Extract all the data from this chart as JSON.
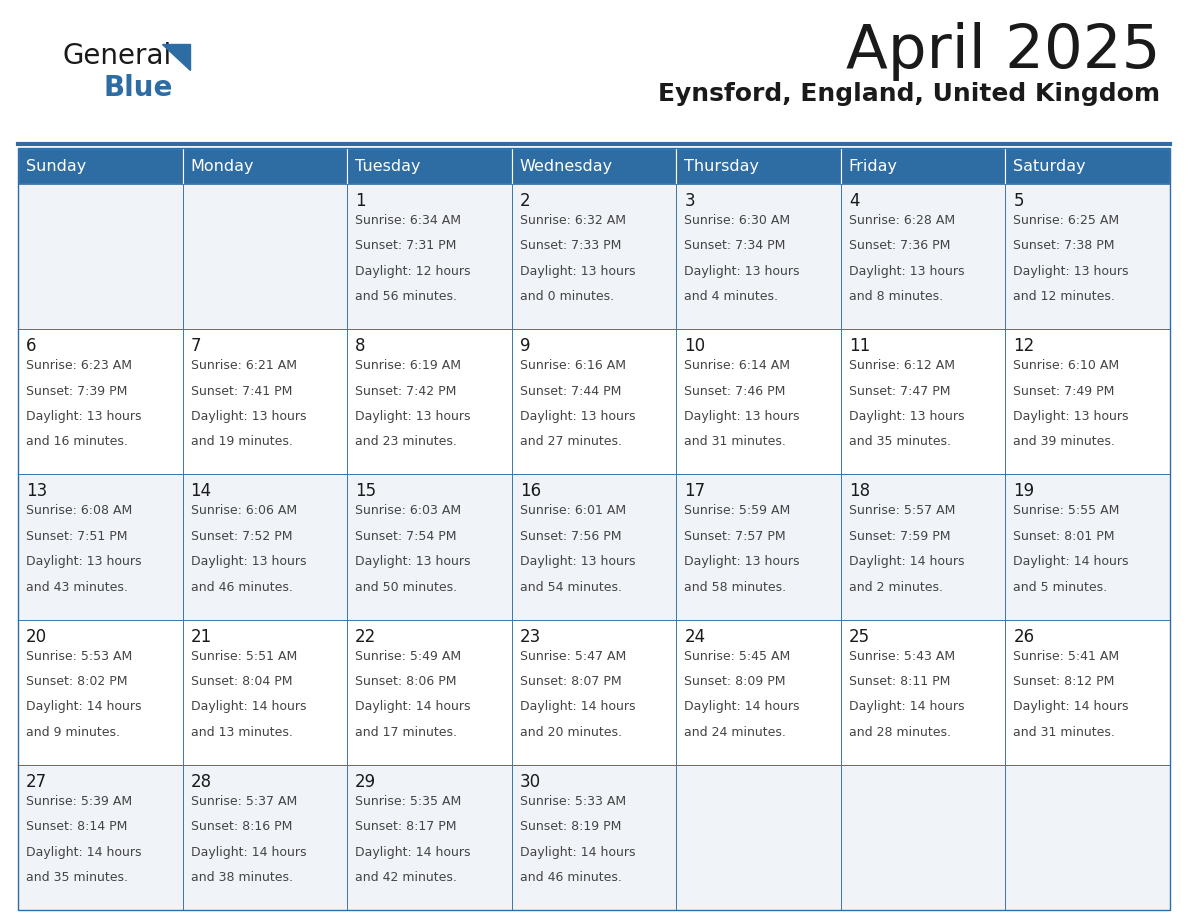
{
  "title": "April 2025",
  "subtitle": "Eynsford, England, United Kingdom",
  "header_bg_color": "#2E6DA4",
  "header_text_color": "#FFFFFF",
  "cell_bg_color_light": "#F0F4F8",
  "cell_bg_color_white": "#FFFFFF",
  "cell_text_color": "#333333",
  "border_color": "#2E6DA4",
  "days_of_week": [
    "Sunday",
    "Monday",
    "Tuesday",
    "Wednesday",
    "Thursday",
    "Friday",
    "Saturday"
  ],
  "weeks": [
    [
      {
        "day": "",
        "sunrise": "",
        "sunset": "",
        "daylight": ""
      },
      {
        "day": "",
        "sunrise": "",
        "sunset": "",
        "daylight": ""
      },
      {
        "day": "1",
        "sunrise": "6:34 AM",
        "sunset": "7:31 PM",
        "daylight": "12 hours and 56 minutes."
      },
      {
        "day": "2",
        "sunrise": "6:32 AM",
        "sunset": "7:33 PM",
        "daylight": "13 hours and 0 minutes."
      },
      {
        "day": "3",
        "sunrise": "6:30 AM",
        "sunset": "7:34 PM",
        "daylight": "13 hours and 4 minutes."
      },
      {
        "day": "4",
        "sunrise": "6:28 AM",
        "sunset": "7:36 PM",
        "daylight": "13 hours and 8 minutes."
      },
      {
        "day": "5",
        "sunrise": "6:25 AM",
        "sunset": "7:38 PM",
        "daylight": "13 hours and 12 minutes."
      }
    ],
    [
      {
        "day": "6",
        "sunrise": "6:23 AM",
        "sunset": "7:39 PM",
        "daylight": "13 hours and 16 minutes."
      },
      {
        "day": "7",
        "sunrise": "6:21 AM",
        "sunset": "7:41 PM",
        "daylight": "13 hours and 19 minutes."
      },
      {
        "day": "8",
        "sunrise": "6:19 AM",
        "sunset": "7:42 PM",
        "daylight": "13 hours and 23 minutes."
      },
      {
        "day": "9",
        "sunrise": "6:16 AM",
        "sunset": "7:44 PM",
        "daylight": "13 hours and 27 minutes."
      },
      {
        "day": "10",
        "sunrise": "6:14 AM",
        "sunset": "7:46 PM",
        "daylight": "13 hours and 31 minutes."
      },
      {
        "day": "11",
        "sunrise": "6:12 AM",
        "sunset": "7:47 PM",
        "daylight": "13 hours and 35 minutes."
      },
      {
        "day": "12",
        "sunrise": "6:10 AM",
        "sunset": "7:49 PM",
        "daylight": "13 hours and 39 minutes."
      }
    ],
    [
      {
        "day": "13",
        "sunrise": "6:08 AM",
        "sunset": "7:51 PM",
        "daylight": "13 hours and 43 minutes."
      },
      {
        "day": "14",
        "sunrise": "6:06 AM",
        "sunset": "7:52 PM",
        "daylight": "13 hours and 46 minutes."
      },
      {
        "day": "15",
        "sunrise": "6:03 AM",
        "sunset": "7:54 PM",
        "daylight": "13 hours and 50 minutes."
      },
      {
        "day": "16",
        "sunrise": "6:01 AM",
        "sunset": "7:56 PM",
        "daylight": "13 hours and 54 minutes."
      },
      {
        "day": "17",
        "sunrise": "5:59 AM",
        "sunset": "7:57 PM",
        "daylight": "13 hours and 58 minutes."
      },
      {
        "day": "18",
        "sunrise": "5:57 AM",
        "sunset": "7:59 PM",
        "daylight": "14 hours and 2 minutes."
      },
      {
        "day": "19",
        "sunrise": "5:55 AM",
        "sunset": "8:01 PM",
        "daylight": "14 hours and 5 minutes."
      }
    ],
    [
      {
        "day": "20",
        "sunrise": "5:53 AM",
        "sunset": "8:02 PM",
        "daylight": "14 hours and 9 minutes."
      },
      {
        "day": "21",
        "sunrise": "5:51 AM",
        "sunset": "8:04 PM",
        "daylight": "14 hours and 13 minutes."
      },
      {
        "day": "22",
        "sunrise": "5:49 AM",
        "sunset": "8:06 PM",
        "daylight": "14 hours and 17 minutes."
      },
      {
        "day": "23",
        "sunrise": "5:47 AM",
        "sunset": "8:07 PM",
        "daylight": "14 hours and 20 minutes."
      },
      {
        "day": "24",
        "sunrise": "5:45 AM",
        "sunset": "8:09 PM",
        "daylight": "14 hours and 24 minutes."
      },
      {
        "day": "25",
        "sunrise": "5:43 AM",
        "sunset": "8:11 PM",
        "daylight": "14 hours and 28 minutes."
      },
      {
        "day": "26",
        "sunrise": "5:41 AM",
        "sunset": "8:12 PM",
        "daylight": "14 hours and 31 minutes."
      }
    ],
    [
      {
        "day": "27",
        "sunrise": "5:39 AM",
        "sunset": "8:14 PM",
        "daylight": "14 hours and 35 minutes."
      },
      {
        "day": "28",
        "sunrise": "5:37 AM",
        "sunset": "8:16 PM",
        "daylight": "14 hours and 38 minutes."
      },
      {
        "day": "29",
        "sunrise": "5:35 AM",
        "sunset": "8:17 PM",
        "daylight": "14 hours and 42 minutes."
      },
      {
        "day": "30",
        "sunrise": "5:33 AM",
        "sunset": "8:19 PM",
        "daylight": "14 hours and 46 minutes."
      },
      {
        "day": "",
        "sunrise": "",
        "sunset": "",
        "daylight": ""
      },
      {
        "day": "",
        "sunrise": "",
        "sunset": "",
        "daylight": ""
      },
      {
        "day": "",
        "sunrise": "",
        "sunset": "",
        "daylight": ""
      }
    ]
  ]
}
